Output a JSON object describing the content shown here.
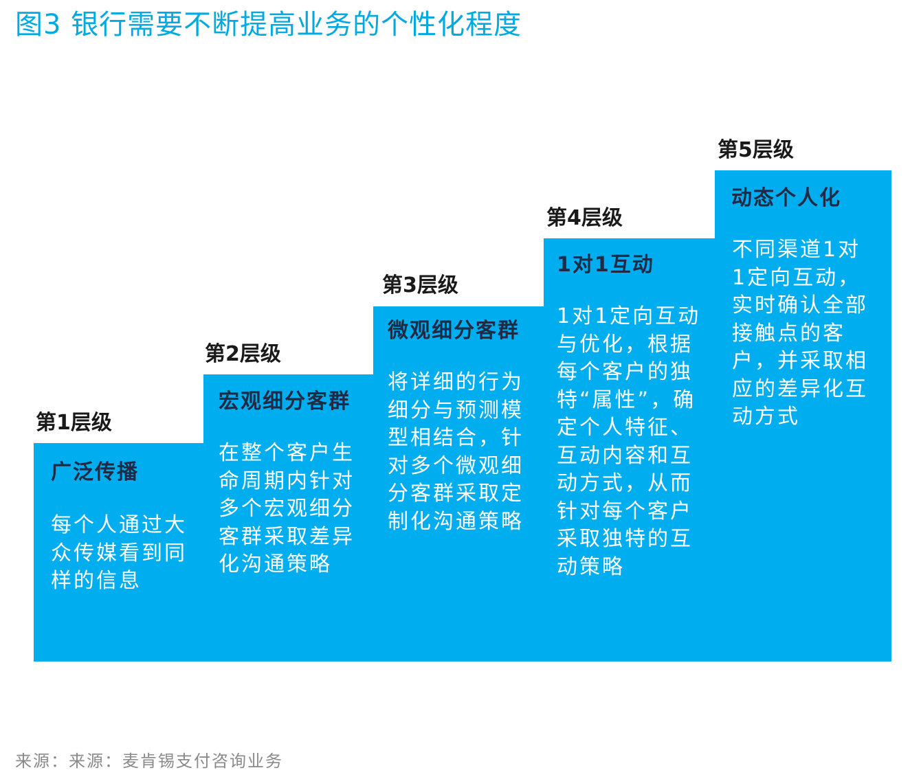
{
  "title": "图3 银行需要不断提高业务的个性化程度",
  "levels": [
    {
      "label": "第1层级",
      "heading": "广泛传播",
      "description": "每个人通过大众传媒看到同样的信息"
    },
    {
      "label": "第2层级",
      "heading": "宏观细分客群",
      "description": "在整个客户生命周期内针对多个宏观细分客群采取差异化沟通策略"
    },
    {
      "label": "第3层级",
      "heading": "微观细分客群",
      "description": "将详细的行为细分与预测模型相结合，针对多个微观细分客群采取定制化沟通策略"
    },
    {
      "label": "第4层级",
      "heading": "1对1互动",
      "description": "1对1定向互动与优化，根据每个客户的独特“属性”，确定个人特征、互动内容和互动方式，从而针对每个客户采取独特的互动策略"
    },
    {
      "label": "第5层级",
      "heading": "动态个人化",
      "description": "不同渠道1对1定向互动，实时确认全部接触点的客户，并采取相应的差异化互动方式"
    }
  ],
  "source": "来源：来源：麦肯锡支付咨询业务",
  "colors": {
    "title": "#00a9e0",
    "step_fill": "#00adef",
    "heading_text": "#1f2a44",
    "description_text": "#ffffff",
    "source_text": "#8a8a8a"
  }
}
